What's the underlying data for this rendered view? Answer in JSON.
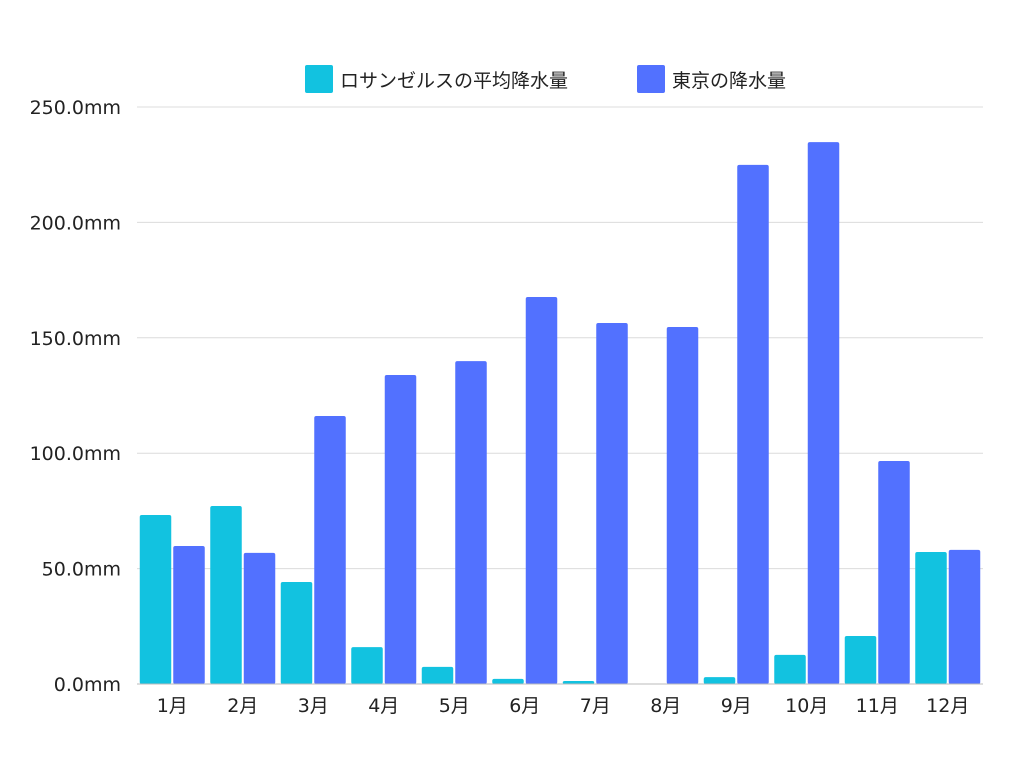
{
  "chart_data": {
    "type": "bar",
    "categories": [
      "1月",
      "2月",
      "3月",
      "4月",
      "5月",
      "6月",
      "7月",
      "8月",
      "9月",
      "10月",
      "11月",
      "12月"
    ],
    "series": [
      {
        "name": "ロサンゼルスの平均降水量",
        "color": "#12C2E0",
        "values": [
          73.2,
          77.1,
          44.2,
          16.0,
          7.4,
          2.2,
          1.3,
          0.1,
          3.0,
          12.6,
          20.8,
          57.2
        ]
      },
      {
        "name": "東京の降水量",
        "color": "#5271FF",
        "values": [
          59.8,
          56.8,
          116.1,
          133.9,
          139.9,
          167.7,
          156.4,
          154.7,
          224.9,
          234.8,
          96.6,
          58.1
        ]
      }
    ],
    "yticks": [
      "0.0mm",
      "50.0mm",
      "100.0mm",
      "150.0mm",
      "200.0mm",
      "250.0mm"
    ],
    "ylim": [
      0,
      250
    ],
    "grid": true,
    "legend_position": "top"
  }
}
